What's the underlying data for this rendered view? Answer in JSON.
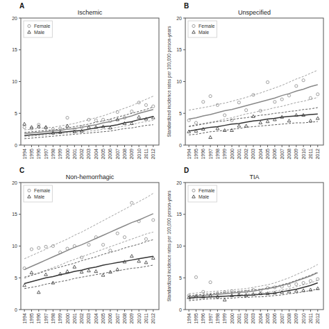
{
  "chart_data": [
    {
      "type": "line",
      "title": "Ischemic",
      "annotations": [
        "A"
      ],
      "x": [
        1994,
        1995,
        1996,
        1997,
        1998,
        1999,
        2000,
        2001,
        2002,
        2003,
        2004,
        2005,
        2006,
        2007,
        2008,
        2009,
        2010,
        2011,
        2012
      ],
      "xlim": [
        1993.5,
        2012.8
      ],
      "xticks": [
        1994,
        1995,
        1996,
        1997,
        1998,
        1999,
        2000,
        2001,
        2002,
        2003,
        2004,
        2005,
        2006,
        2007,
        2008,
        2009,
        2010,
        2011,
        2012
      ],
      "ylim": [
        0,
        20
      ],
      "yticks": [
        0,
        5,
        10,
        15,
        20
      ],
      "grid": false,
      "legend": "upper left",
      "series": [
        {
          "type": "line",
          "line_style": "dashed",
          "color": "#888888",
          "values": [
            2.4,
            2.5,
            2.6,
            2.7,
            2.8,
            3.0,
            3.2,
            3.4,
            3.7,
            4.0,
            4.3,
            4.6,
            5.0,
            5.4,
            5.8,
            6.2,
            6.7,
            7.2,
            7.7
          ]
        },
        {
          "type": "line",
          "line_style": "dashed",
          "color": "#888888",
          "values": [
            1.3,
            1.4,
            1.5,
            1.6,
            1.7,
            1.8,
            1.9,
            2.0,
            2.1,
            2.2,
            2.3,
            2.5,
            2.6,
            2.8,
            3.0,
            3.2,
            3.5,
            3.7,
            3.9
          ]
        },
        {
          "type": "line",
          "line_style": "dashed",
          "color": "#333333",
          "values": [
            2.0,
            2.1,
            2.2,
            2.3,
            2.4,
            2.5,
            2.7,
            2.9,
            3.1,
            3.3,
            3.6,
            3.8,
            4.1,
            4.4,
            4.7,
            5.0,
            5.3,
            5.6,
            6.0
          ]
        },
        {
          "type": "line",
          "line_style": "dashed",
          "color": "#333333",
          "values": [
            1.0,
            1.1,
            1.2,
            1.3,
            1.4,
            1.5,
            1.6,
            1.7,
            1.8,
            1.9,
            2.0,
            2.1,
            2.2,
            2.4,
            2.6,
            2.7,
            2.9,
            3.1,
            3.2
          ]
        },
        {
          "type": "line",
          "line_style": "solid",
          "color": "#888888",
          "values": [
            1.8,
            1.9,
            2.0,
            2.1,
            2.2,
            2.3,
            2.5,
            2.6,
            2.8,
            3.0,
            3.2,
            3.5,
            3.7,
            4.0,
            4.3,
            4.6,
            5.0,
            5.3,
            5.6
          ]
        },
        {
          "type": "line",
          "line_style": "solid",
          "color": "#333333",
          "values": [
            1.5,
            1.6,
            1.7,
            1.8,
            1.9,
            2.0,
            2.1,
            2.2,
            2.3,
            2.5,
            2.7,
            2.9,
            3.0,
            3.2,
            3.5,
            3.7,
            4.0,
            4.2,
            4.5
          ]
        },
        {
          "name": "Female",
          "type": "scatter",
          "marker": "circle",
          "color": "#888888",
          "values": [
            2.8,
            2.6,
            3.2,
            2.7,
            2.5,
            2.6,
            4.3,
            2.5,
            2.8,
            4.0,
            3.9,
            4.0,
            3.8,
            5.2,
            4.3,
            5.3,
            6.7,
            6.3,
            6.1
          ]
        },
        {
          "name": "Male",
          "type": "scatter",
          "marker": "triangle",
          "color": "#333333",
          "values": [
            3.3,
            2.8,
            2.9,
            2.8,
            1.9,
            2.0,
            3.0,
            2.1,
            2.2,
            2.8,
            2.8,
            2.9,
            2.7,
            4.0,
            3.4,
            3.4,
            4.4,
            4.1,
            4.3
          ]
        }
      ]
    },
    {
      "type": "line",
      "title": "Unspecified",
      "annotations": [
        "B"
      ],
      "ylabel": "Standardized incidence rates per 100,000 person-years",
      "x": [
        1994,
        1995,
        1996,
        1997,
        1998,
        1999,
        2000,
        2001,
        2002,
        2003,
        2004,
        2005,
        2006,
        2007,
        2008,
        2009,
        2010,
        2011,
        2012
      ],
      "xlim": [
        1993.5,
        2012.8
      ],
      "xticks": [
        1994,
        1995,
        1996,
        1997,
        1998,
        1999,
        2000,
        2001,
        2002,
        2003,
        2004,
        2005,
        2006,
        2007,
        2008,
        2009,
        2010,
        2011,
        2012
      ],
      "ylim": [
        0,
        20
      ],
      "yticks": [
        0,
        5,
        10,
        15,
        20
      ],
      "grid": false,
      "legend": "upper left",
      "series": [
        {
          "type": "line",
          "line_style": "dashed",
          "color": "#888888",
          "values": [
            5.5,
            5.7,
            5.9,
            6.1,
            6.4,
            6.6,
            6.9,
            7.2,
            7.5,
            7.9,
            8.2,
            8.6,
            9.0,
            9.4,
            9.9,
            10.4,
            10.8,
            11.3,
            11.8
          ]
        },
        {
          "type": "line",
          "line_style": "dashed",
          "color": "#888888",
          "values": [
            3.0,
            3.2,
            3.4,
            3.6,
            3.8,
            4.1,
            4.3,
            4.6,
            4.9,
            5.1,
            5.4,
            5.6,
            5.9,
            6.1,
            6.4,
            6.7,
            6.9,
            7.2,
            7.5
          ]
        },
        {
          "type": "line",
          "line_style": "dashed",
          "color": "#333333",
          "values": [
            2.9,
            3.1,
            3.3,
            3.5,
            3.7,
            3.8,
            4.0,
            4.2,
            4.3,
            4.5,
            4.7,
            4.8,
            5.0,
            5.1,
            5.3,
            5.4,
            5.6,
            5.7,
            5.9
          ]
        },
        {
          "type": "line",
          "line_style": "dashed",
          "color": "#333333",
          "values": [
            1.6,
            1.7,
            1.9,
            2.1,
            2.2,
            2.3,
            2.5,
            2.6,
            2.8,
            2.9,
            3.0,
            3.1,
            3.2,
            3.3,
            3.4,
            3.5,
            3.5,
            3.6,
            3.7
          ]
        },
        {
          "type": "line",
          "line_style": "solid",
          "color": "#888888",
          "values": [
            4.1,
            4.3,
            4.6,
            4.8,
            5.1,
            5.4,
            5.6,
            5.9,
            6.2,
            6.5,
            6.8,
            7.1,
            7.4,
            7.8,
            8.1,
            8.5,
            8.8,
            9.2,
            9.5
          ]
        },
        {
          "type": "line",
          "line_style": "solid",
          "color": "#333333",
          "values": [
            2.2,
            2.4,
            2.6,
            2.8,
            2.9,
            3.1,
            3.3,
            3.4,
            3.6,
            3.8,
            3.9,
            4.1,
            4.2,
            4.4,
            4.5,
            4.6,
            4.7,
            4.8,
            4.9
          ]
        },
        {
          "name": "Female",
          "type": "scatter",
          "marker": "circle",
          "color": "#888888",
          "values": [
            3.9,
            3.5,
            6.8,
            7.7,
            6.3,
            4.7,
            3.9,
            6.7,
            5.5,
            7.9,
            5.4,
            9.9,
            6.8,
            7.2,
            7.8,
            9.3,
            10.2,
            7.4,
            8.0
          ]
        },
        {
          "name": "Male",
          "type": "scatter",
          "marker": "triangle",
          "color": "#333333",
          "values": [
            2.1,
            2.2,
            2.5,
            1.2,
            2.6,
            2.3,
            2.3,
            3.0,
            3.0,
            4.5,
            3.5,
            3.7,
            4.0,
            4.4,
            3.8,
            4.7,
            4.7,
            3.8,
            4.2
          ]
        }
      ]
    },
    {
      "type": "line",
      "title": "Non-hemorrhagic",
      "annotations": [
        "C"
      ],
      "x": [
        1994,
        1995,
        1996,
        1997,
        1998,
        1999,
        2000,
        2001,
        2002,
        2003,
        2004,
        2005,
        2006,
        2007,
        2008,
        2009,
        2010,
        2011,
        2012
      ],
      "xlim": [
        1993.5,
        2012.8
      ],
      "xticks": [
        1994,
        1995,
        1996,
        1997,
        1998,
        1999,
        2000,
        2001,
        2002,
        2003,
        2004,
        2005,
        2006,
        2007,
        2008,
        2009,
        2010,
        2011,
        2012
      ],
      "ylim": [
        0,
        20
      ],
      "yticks": [
        0,
        5,
        10,
        15,
        20
      ],
      "grid": false,
      "legend": "upper left",
      "series": [
        {
          "type": "line",
          "line_style": "dashed",
          "color": "#888888",
          "values": [
            8.0,
            8.5,
            9.0,
            9.5,
            10.1,
            10.6,
            11.1,
            11.7,
            12.2,
            12.8,
            13.4,
            14.0,
            14.6,
            15.2,
            15.8,
            16.4,
            17.0,
            17.6,
            18.3
          ]
        },
        {
          "type": "line",
          "line_style": "dashed",
          "color": "#888888",
          "values": [
            4.9,
            5.4,
            5.8,
            6.2,
            6.6,
            7.0,
            7.5,
            7.9,
            8.3,
            8.7,
            9.1,
            9.5,
            9.9,
            10.3,
            10.7,
            11.1,
            11.5,
            11.9,
            12.2
          ]
        },
        {
          "type": "line",
          "line_style": "dashed",
          "color": "#333333",
          "values": [
            5.1,
            5.4,
            5.7,
            6.1,
            6.4,
            6.7,
            7.0,
            7.3,
            7.7,
            8.0,
            8.3,
            8.7,
            9.0,
            9.3,
            9.7,
            10.0,
            10.3,
            10.7,
            11.0
          ]
        },
        {
          "type": "line",
          "line_style": "dashed",
          "color": "#333333",
          "values": [
            3.3,
            3.5,
            3.7,
            4.0,
            4.2,
            4.4,
            4.6,
            4.9,
            5.1,
            5.3,
            5.5,
            5.7,
            5.9,
            6.1,
            6.3,
            6.5,
            6.6,
            6.8,
            7.0
          ]
        },
        {
          "type": "line",
          "line_style": "solid",
          "color": "#888888",
          "values": [
            6.3,
            6.8,
            7.3,
            7.8,
            8.3,
            8.8,
            9.3,
            9.8,
            10.2,
            10.7,
            11.2,
            11.7,
            12.2,
            12.7,
            13.2,
            13.7,
            14.1,
            14.6,
            15.1
          ]
        },
        {
          "type": "line",
          "line_style": "solid",
          "color": "#333333",
          "values": [
            4.1,
            4.4,
            4.7,
            5.0,
            5.2,
            5.5,
            5.7,
            6.0,
            6.2,
            6.5,
            6.7,
            7.0,
            7.2,
            7.4,
            7.6,
            7.8,
            8.0,
            8.2,
            8.4
          ]
        },
        {
          "name": "Female",
          "type": "scatter",
          "marker": "circle",
          "color": "#888888",
          "values": [
            6.5,
            9.5,
            9.7,
            9.9,
            10.0,
            9.0,
            9.6,
            10.0,
            8.2,
            10.2,
            11.4,
            10.2,
            9.3,
            12.0,
            11.4,
            16.8,
            13.9,
            11.1,
            14.1
          ]
        },
        {
          "name": "Male",
          "type": "scatter",
          "marker": "triangle",
          "color": "#333333",
          "values": [
            3.8,
            5.8,
            2.7,
            5.5,
            4.2,
            5.6,
            6.0,
            6.7,
            5.9,
            6.1,
            6.0,
            5.4,
            5.9,
            6.3,
            7.5,
            8.4,
            7.6,
            7.4,
            8.1
          ]
        }
      ]
    },
    {
      "type": "line",
      "title": "TIA",
      "annotations": [
        "D"
      ],
      "ylabel": "Standardized incidence rates per 100,000 person-years",
      "x": [
        1994,
        1995,
        1996,
        1997,
        1998,
        1999,
        2000,
        2001,
        2002,
        2003,
        2004,
        2005,
        2006,
        2007,
        2008,
        2009,
        2010,
        2011,
        2012
      ],
      "xlim": [
        1993.5,
        2012.8
      ],
      "xticks": [
        1994,
        1995,
        1996,
        1997,
        1998,
        1999,
        2000,
        2001,
        2002,
        2003,
        2004,
        2005,
        2006,
        2007,
        2008,
        2009,
        2010,
        2011,
        2012
      ],
      "ylim": [
        0,
        20
      ],
      "yticks": [
        0,
        5,
        10,
        15,
        20
      ],
      "grid": false,
      "legend": "upper left",
      "series": [
        {
          "type": "line",
          "line_style": "dashed",
          "color": "#888888",
          "values": [
            2.5,
            2.6,
            2.7,
            2.8,
            2.9,
            3.0,
            3.1,
            3.2,
            3.3,
            3.5,
            3.7,
            3.9,
            4.2,
            4.6,
            5.0,
            5.5,
            6.0,
            6.5,
            7.1
          ]
        },
        {
          "type": "line",
          "line_style": "dashed",
          "color": "#888888",
          "values": [
            1.6,
            1.7,
            1.8,
            1.9,
            2.0,
            2.1,
            2.2,
            2.3,
            2.4,
            2.5,
            2.6,
            2.7,
            2.9,
            3.1,
            3.3,
            3.6,
            3.9,
            4.2,
            4.6
          ]
        },
        {
          "type": "line",
          "line_style": "dashed",
          "color": "#333333",
          "values": [
            2.2,
            2.3,
            2.4,
            2.5,
            2.6,
            2.7,
            2.8,
            2.9,
            3.0,
            3.1,
            3.2,
            3.4,
            3.6,
            3.9,
            4.2,
            4.6,
            5.0,
            5.4,
            5.9
          ]
        },
        {
          "type": "line",
          "line_style": "dashed",
          "color": "#333333",
          "values": [
            1.4,
            1.5,
            1.6,
            1.7,
            1.7,
            1.8,
            1.8,
            1.9,
            1.9,
            2.0,
            2.0,
            2.1,
            2.2,
            2.3,
            2.5,
            2.6,
            2.8,
            3.0,
            3.2
          ]
        },
        {
          "type": "line",
          "line_style": "solid",
          "color": "#888888",
          "values": [
            2.0,
            2.1,
            2.2,
            2.3,
            2.4,
            2.5,
            2.6,
            2.7,
            2.8,
            2.9,
            3.1,
            3.3,
            3.5,
            3.8,
            4.1,
            4.5,
            4.9,
            5.3,
            5.8
          ]
        },
        {
          "type": "line",
          "line_style": "solid",
          "color": "#333333",
          "values": [
            1.8,
            1.9,
            1.95,
            2.0,
            2.05,
            2.1,
            2.15,
            2.2,
            2.25,
            2.3,
            2.4,
            2.5,
            2.6,
            2.8,
            3.0,
            3.2,
            3.5,
            3.8,
            4.2
          ]
        },
        {
          "name": "Female",
          "type": "scatter",
          "marker": "circle",
          "color": "#888888",
          "values": [
            2.2,
            5.1,
            2.8,
            4.3,
            2.5,
            2.7,
            2.9,
            2.7,
            2.8,
            3.1,
            3.0,
            3.4,
            3.5,
            3.6,
            3.8,
            4.0,
            4.2,
            4.5,
            4.8
          ]
        },
        {
          "name": "Male",
          "type": "scatter",
          "marker": "triangle",
          "color": "#333333",
          "values": [
            1.9,
            2.1,
            2.0,
            2.2,
            2.0,
            1.5,
            2.2,
            2.3,
            2.2,
            2.4,
            2.5,
            2.5,
            2.6,
            2.7,
            2.8,
            2.9,
            3.0,
            3.1,
            3.3
          ]
        }
      ]
    }
  ]
}
